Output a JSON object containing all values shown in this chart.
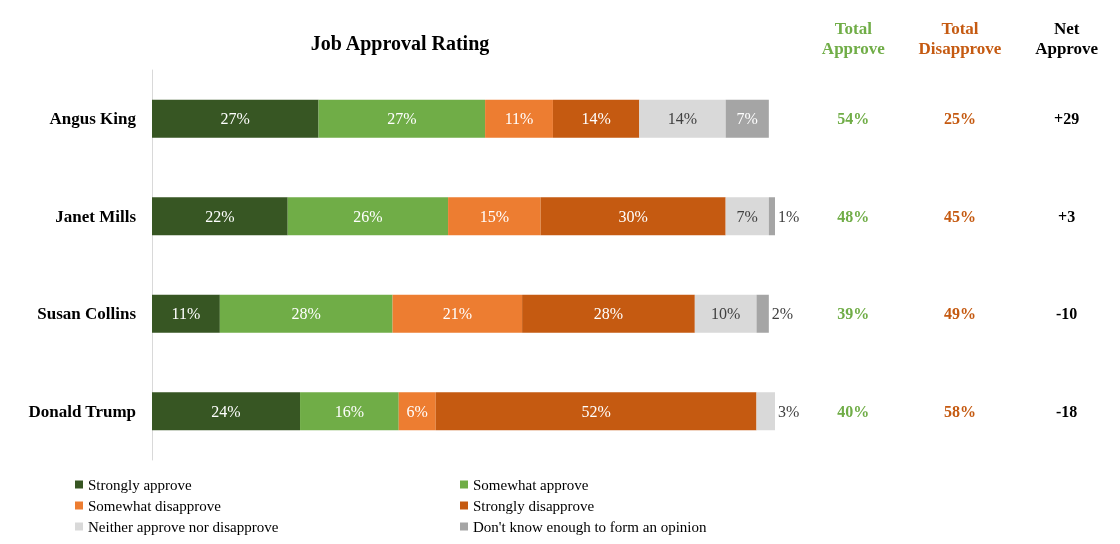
{
  "chart_data": [
    {
      "type": "bar",
      "orientation": "horizontal",
      "stacked": true,
      "title": "Job Approval Rating",
      "legend": "bottom",
      "tick_labels": "y",
      "categories": [
        "Angus King",
        "Janet Mills",
        "Susan Collins",
        "Donald Trump"
      ],
      "series": [
        {
          "name": "Strongly approve",
          "color": "#375623",
          "values": [
            27,
            22,
            11,
            24
          ],
          "value_labels": [
            "27%",
            "22%",
            "11%",
            "24%"
          ]
        },
        {
          "name": "Somewhat approve",
          "color": "#70ad47",
          "values": [
            27,
            26,
            28,
            16
          ],
          "value_labels": [
            "27%",
            "26%",
            "28%",
            "16%"
          ]
        },
        {
          "name": "Somewhat disapprove",
          "color": "#ed7d31",
          "values": [
            11,
            15,
            21,
            6
          ],
          "value_labels": [
            "11%",
            "15%",
            "21%",
            "6%"
          ]
        },
        {
          "name": "Strongly disapprove",
          "color": "#c55a11",
          "values": [
            14,
            30,
            28,
            52
          ],
          "value_labels": [
            "14%",
            "30%",
            "28%",
            "52%"
          ]
        },
        {
          "name": "Neither approve nor disapprove",
          "color": "#d9d9d9",
          "values": [
            14,
            7,
            10,
            3
          ],
          "value_labels": [
            "14%",
            "7%",
            "10%",
            "3%"
          ]
        },
        {
          "name": "Don't know enough to form an opinion",
          "color": "#a5a5a5",
          "values": [
            7,
            1,
            2,
            null
          ],
          "value_labels": [
            "7%",
            "1%",
            "2%",
            null
          ]
        }
      ]
    },
    {
      "type": "other",
      "categories": [
        "Total Approve",
        "Total Disapprove",
        "Net Approve"
      ],
      "colors": [
        "#70ad47",
        "#c55a11",
        "#000000"
      ],
      "annotations": [
        "54%",
        "25%",
        "+29",
        "48%",
        "45%",
        "+3",
        "39%",
        "49%",
        "-10",
        "40%",
        "58%",
        "-18"
      ]
    }
  ]
}
